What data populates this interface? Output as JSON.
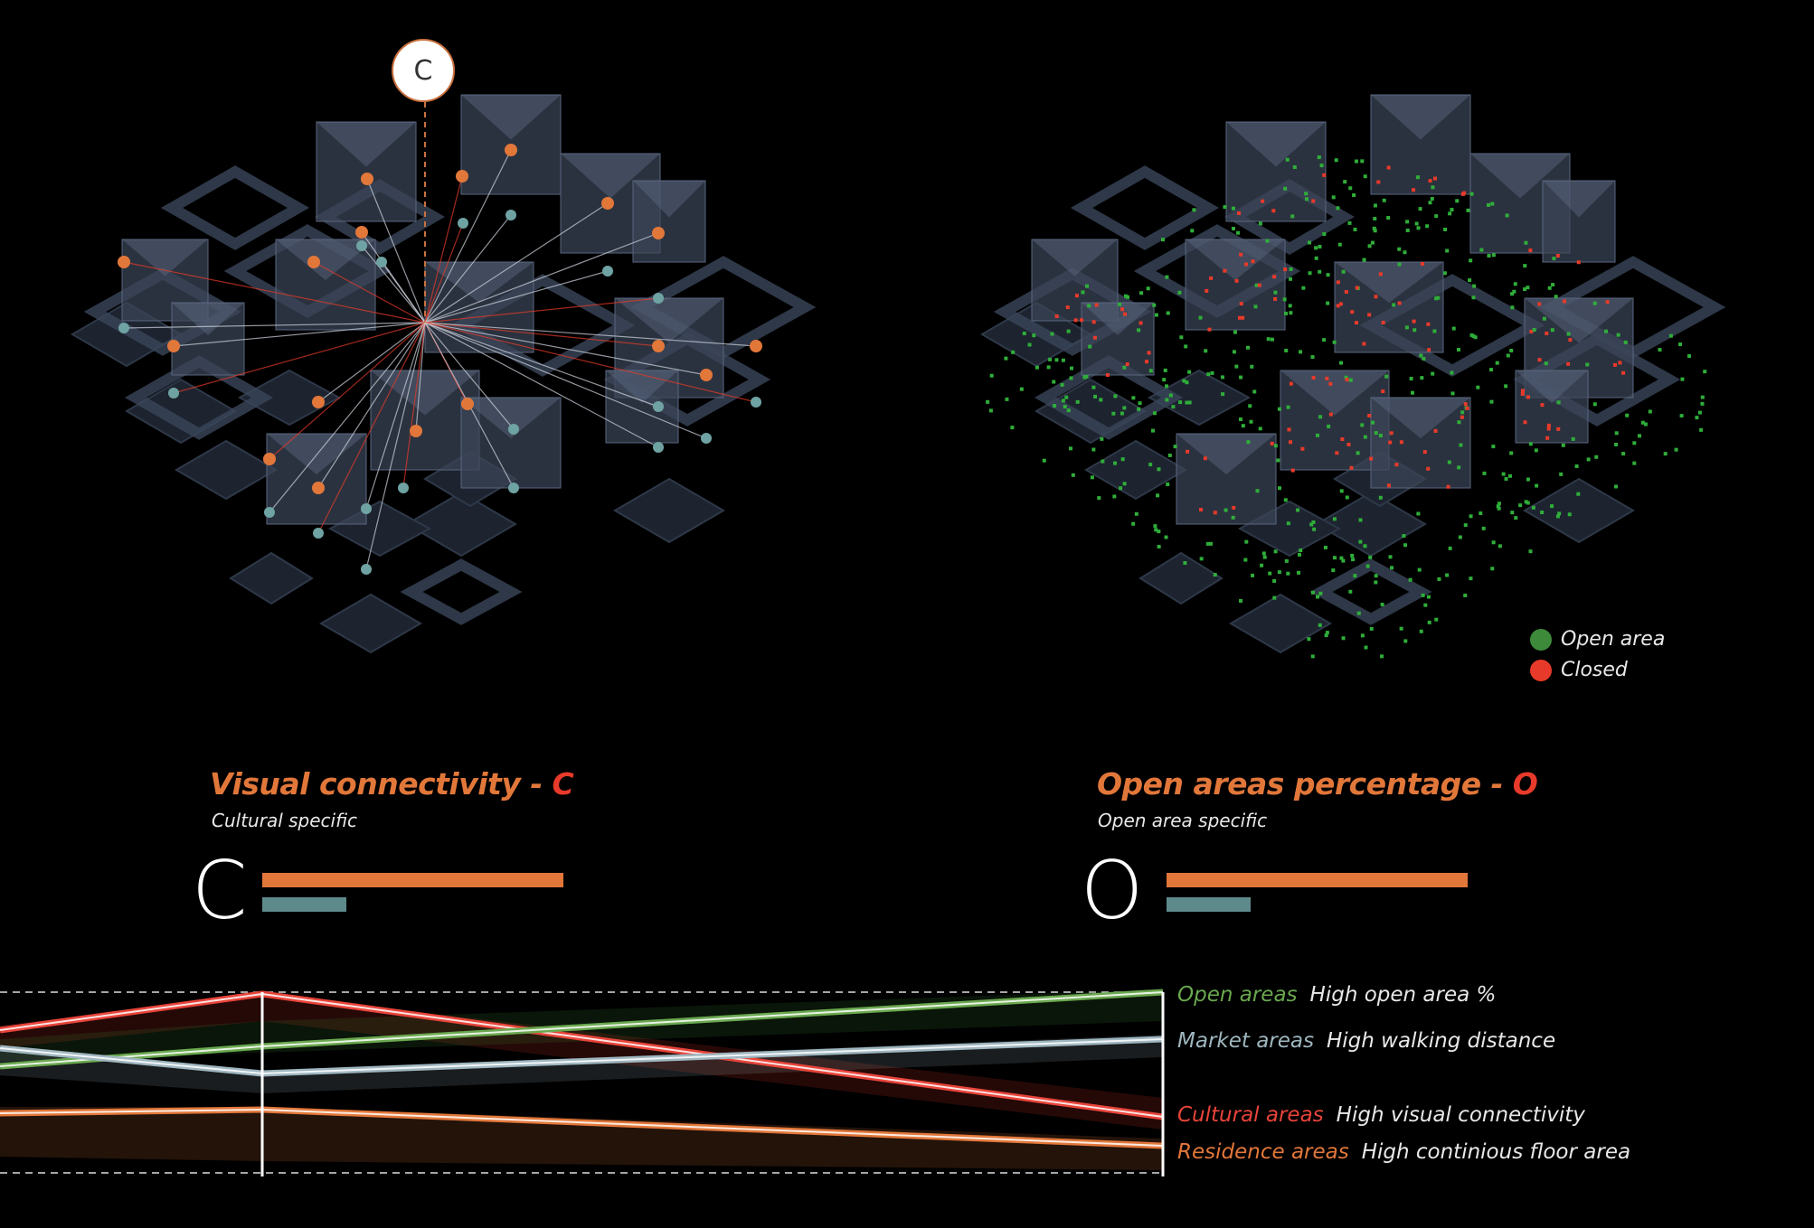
{
  "left_panel": {
    "marker_label": "C",
    "title_main": "Visual connectivity - ",
    "title_letter": "C",
    "subtitle": "Cultural specific",
    "big_letter": "C"
  },
  "right_panel": {
    "title_main": "Open areas percentage - ",
    "title_letter": "O",
    "subtitle": "Open area specific",
    "big_letter": "O",
    "legend": [
      {
        "label": "Open area",
        "color": "#3d8a3a"
      },
      {
        "label": "Closed",
        "color": "#e83a2a"
      }
    ]
  },
  "bars": {
    "orange_level": 1.0,
    "teal_level": 0.28,
    "colors": {
      "orange": "#e2773a",
      "teal": "#5f8a8c"
    }
  },
  "parallel": {
    "labels": [
      {
        "name": "Open areas",
        "desc": "High open area %",
        "color": "#6aa84f"
      },
      {
        "name": "Market areas",
        "desc": "High walking distance",
        "color": "#9fb6bf"
      },
      {
        "name": "Cultural areas",
        "desc": "High visual connectivity",
        "color": "#e8443a"
      },
      {
        "name": "Residence areas",
        "desc": "High continious floor area",
        "color": "#e2773a"
      }
    ]
  },
  "colors": {
    "orange": "#e2773a",
    "teal": "#6fa3a3",
    "red": "#e83a2a",
    "green": "#2fae3a",
    "block": "#4a5568"
  }
}
